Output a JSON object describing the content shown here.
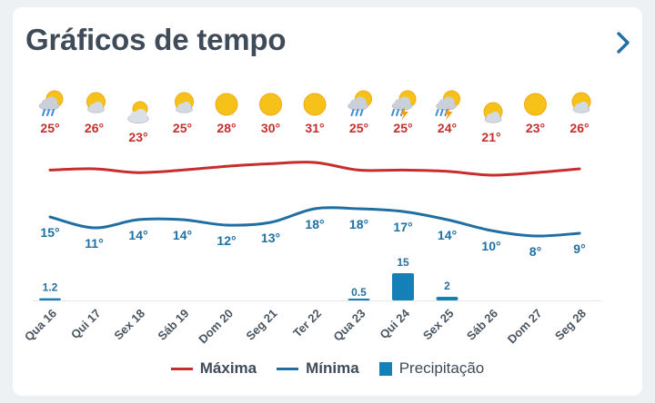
{
  "header": {
    "title": "Gráficos de tempo",
    "next_icon": "chevron-right-icon"
  },
  "colors": {
    "max": "#c62d2d",
    "min": "#1f6fa3",
    "precip": "#1580b8",
    "sun": "#f6c21a",
    "cloud": "#d4dae2",
    "rain": "#3c8fd6"
  },
  "chart_data": {
    "type": "line",
    "days": [
      "Qua 16",
      "Qui 17",
      "Sex 18",
      "Sáb 19",
      "Dom 20",
      "Seg 21",
      "Ter 22",
      "Qua 23",
      "Qui 24",
      "Sex 25",
      "Sáb 26",
      "Dom 27",
      "Seg 28"
    ],
    "icons": [
      "rain-cloud-sun-icon",
      "partly-sunny-icon",
      "cloud-sun-icon",
      "partly-sunny-icon",
      "sun-icon",
      "sun-icon",
      "sun-icon",
      "rain-cloud-sun-icon",
      "thunderstorm-icon",
      "thunderstorm-icon",
      "partly-sunny-icon",
      "sun-icon",
      "partly-sunny-icon"
    ],
    "series": [
      {
        "name": "Máxima",
        "values": [
          25,
          26,
          23,
          25,
          28,
          30,
          31,
          25,
          25,
          24,
          21,
          23,
          26
        ]
      },
      {
        "name": "Mínima",
        "values": [
          15,
          11,
          14,
          14,
          12,
          13,
          18,
          18,
          17,
          14,
          10,
          8,
          9
        ]
      },
      {
        "name": "Precipitação",
        "values": [
          1.2,
          0,
          0,
          0,
          0,
          0,
          0,
          0.5,
          15,
          2,
          0,
          0,
          0
        ]
      }
    ],
    "max_labels": [
      "25°",
      "26°",
      "23°",
      "25°",
      "28°",
      "30°",
      "31°",
      "25°",
      "25°",
      "24°",
      "21°",
      "23°",
      "26°"
    ],
    "min_labels": [
      "15°",
      "11°",
      "14°",
      "14°",
      "12°",
      "13°",
      "18°",
      "18°",
      "17°",
      "14°",
      "10°",
      "8°",
      "9°"
    ],
    "precip_labels": [
      "1.2",
      "",
      "",
      "",
      "",
      "",
      "",
      "0.5",
      "15",
      "2",
      "",
      "",
      ""
    ]
  },
  "legend": {
    "max": "Máxima",
    "min": "Mínima",
    "precip": "Precipitação"
  }
}
